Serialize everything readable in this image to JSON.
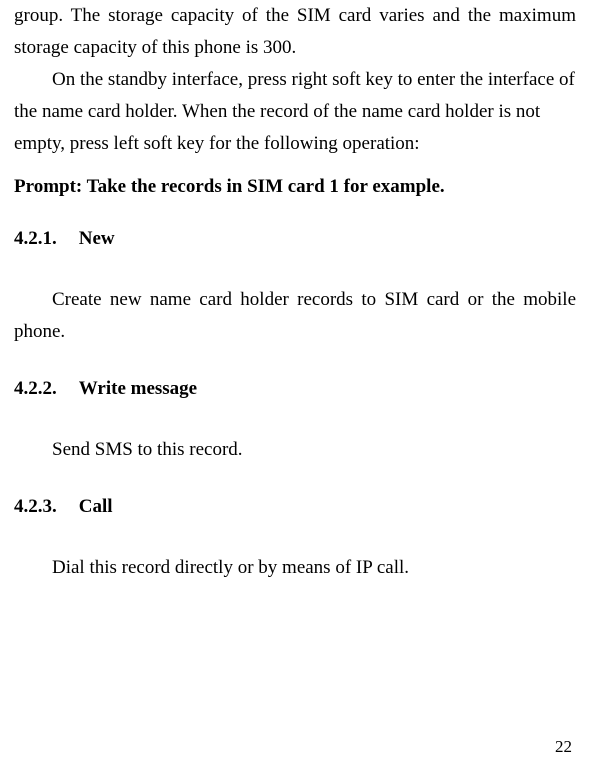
{
  "intro": {
    "para1": "group. The storage capacity of the SIM card varies and the maximum storage capacity of this phone is 300.",
    "para2": "On the standby interface, press right soft key to enter the interface of the name card holder. When the record of the name card holder is not empty, press left soft key for the following operation:"
  },
  "prompt": "Prompt: Take the records in SIM card 1 for example.",
  "sections": {
    "s1": {
      "number": "4.2.1.",
      "title": "New",
      "body": "Create new name card holder records to SIM card or the mobile phone."
    },
    "s2": {
      "number": "4.2.2.",
      "title": "Write message",
      "body": "Send SMS to this record."
    },
    "s3": {
      "number": "4.2.3.",
      "title": "Call",
      "body": "Dial this record directly or by means of IP call."
    }
  },
  "pageNumber": "22"
}
